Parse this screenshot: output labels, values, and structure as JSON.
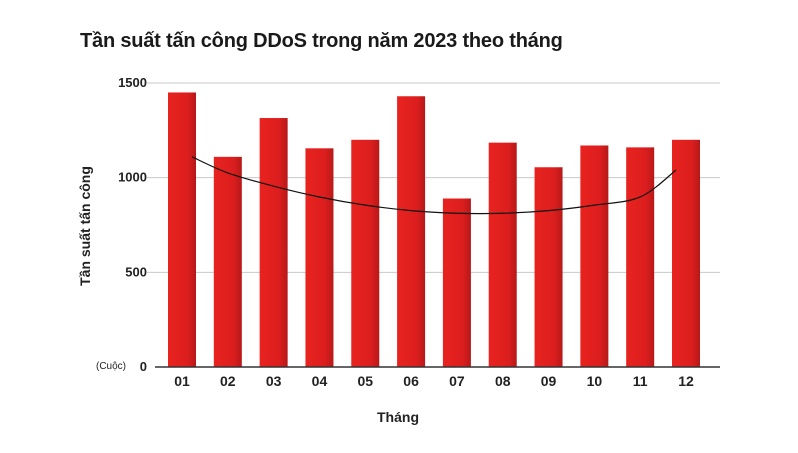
{
  "chart_data": {
    "type": "bar",
    "title": "Tần suất tấn công DDoS trong năm 2023 theo tháng",
    "xlabel": "Tháng",
    "ylabel": "Tần suất tấn công",
    "y_unit_label": "(Cuộc)",
    "categories": [
      "01",
      "02",
      "03",
      "04",
      "05",
      "06",
      "07",
      "08",
      "09",
      "10",
      "11",
      "12"
    ],
    "values": [
      1450,
      1110,
      1315,
      1155,
      1200,
      1430,
      890,
      1185,
      1055,
      1170,
      1160,
      1200
    ],
    "ylim": [
      0,
      1500
    ],
    "y_ticks": [
      0,
      500,
      1000,
      1500
    ],
    "y_tick_labels": [
      "0",
      "500",
      "1000",
      "1500"
    ],
    "grid": true,
    "trendline": {
      "type": "polynomial-2",
      "values": [
        1110,
        1025,
        955,
        898,
        855,
        826,
        812,
        812,
        826,
        855,
        898,
        1040
      ]
    },
    "colors": {
      "bar": "#e3201f",
      "bar_dark": "#b01516",
      "grid": "#c8c8c8",
      "axis": "#333333",
      "trendline": "#111111"
    }
  }
}
